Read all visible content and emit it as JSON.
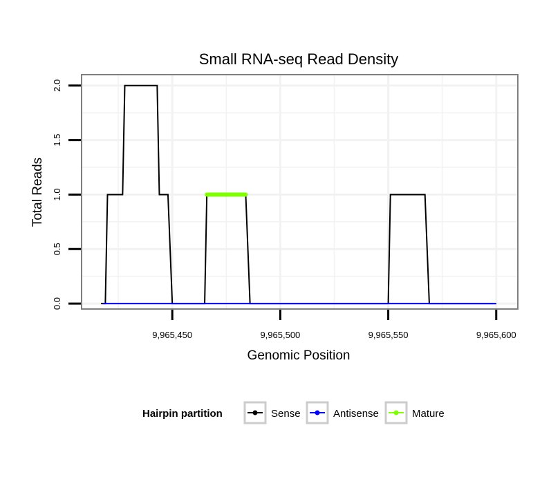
{
  "chart_data": {
    "type": "line",
    "title": "Small RNA-seq Read Density",
    "xlabel": "Genomic Position",
    "ylabel": "Total Reads",
    "xlim": [
      9965408,
      9965610
    ],
    "ylim": [
      -0.05,
      2.1
    ],
    "x_ticks": [
      {
        "value": 9965450,
        "label": "9,965,450"
      },
      {
        "value": 9965500,
        "label": "9,965,500"
      },
      {
        "value": 9965550,
        "label": "9,965,550"
      },
      {
        "value": 9965600,
        "label": "9,965,600"
      }
    ],
    "y_ticks": [
      {
        "value": 0.0,
        "label": "0.0"
      },
      {
        "value": 0.5,
        "label": "0.5"
      },
      {
        "value": 1.0,
        "label": "1.0"
      },
      {
        "value": 1.5,
        "label": "1.5"
      },
      {
        "value": 2.0,
        "label": "2.0"
      }
    ],
    "grid": true,
    "series": [
      {
        "name": "Sense",
        "color": "#000000",
        "x": [
          9965417,
          9965418,
          9965419,
          9965420,
          9965427,
          9965428,
          9965443,
          9965444,
          9965448,
          9965450,
          9965465,
          9965466,
          9965484,
          9965486,
          9965550,
          9965551,
          9965567,
          9965569,
          9965600
        ],
        "y": [
          0,
          0,
          0,
          1,
          1,
          2,
          2,
          1,
          1,
          0,
          0,
          1,
          1,
          0,
          0,
          1,
          1,
          0,
          0
        ]
      },
      {
        "name": "Antisense",
        "color": "#0000ff",
        "x": [
          9965418,
          9965600
        ],
        "y": [
          0,
          0
        ]
      },
      {
        "name": "Mature",
        "color": "#7fff00",
        "x": [
          9965466,
          9965484
        ],
        "y": [
          1,
          1
        ]
      }
    ],
    "legend": {
      "title": "Hairpin partition",
      "position": "bottom",
      "entries": [
        "Sense",
        "Antisense",
        "Mature"
      ]
    }
  }
}
